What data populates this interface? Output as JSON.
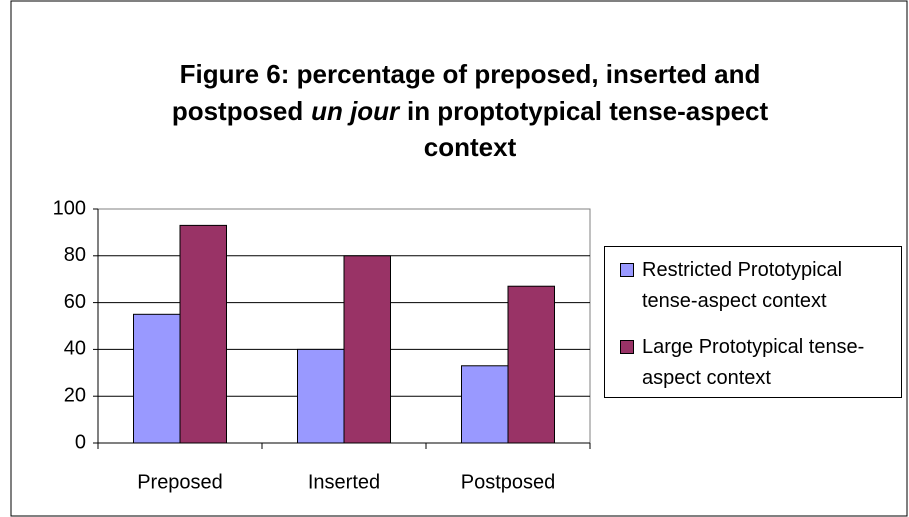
{
  "chart_data": {
    "type": "bar",
    "title": [
      "Figure 6: percentage of preposed, inserted and",
      "postposed",
      "un jour",
      "in proptotypical tense-aspect",
      "context"
    ],
    "title_italic": [
      false,
      false,
      true,
      false,
      false
    ],
    "categories": [
      "Preposed",
      "Inserted",
      "Postposed"
    ],
    "series": [
      {
        "name": "Restricted Prototypical tense-aspect context",
        "color": "#9999ff",
        "values": [
          55,
          40,
          33
        ]
      },
      {
        "name": "Large Prototypical tense-aspect context",
        "color": "#993366",
        "values": [
          93,
          80,
          67
        ]
      }
    ],
    "ylim": [
      0,
      100
    ],
    "yticks": [
      0,
      20,
      40,
      60,
      80,
      100
    ],
    "grid": true,
    "legend": "right"
  }
}
